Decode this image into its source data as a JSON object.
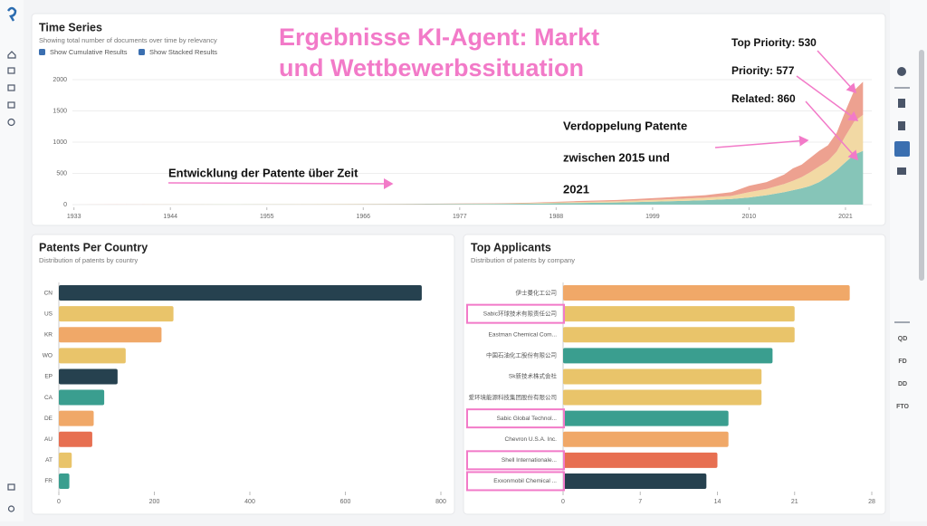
{
  "sidebar_right": [
    "QD",
    "FD",
    "DD",
    "FTO"
  ],
  "annotations": {
    "headline": [
      "Ergebnisse KI-Agent: Markt",
      "und Wettbewerbssituation"
    ],
    "development": "Entwicklung der Patente über Zeit",
    "doubling": [
      "Verdoppelung Patente",
      "zwischen 2015 und",
      "2021"
    ],
    "top_priority": "Top Priority: 530",
    "priority": "Priority: 577",
    "related": "Related: 860"
  },
  "chart_data": [
    {
      "type": "area",
      "title": "Time Series",
      "subtitle": "Showing total number of documents over time by relevancy",
      "options": [
        "Show Cumulative Results",
        "Show Stacked Results"
      ],
      "x": [
        1933,
        1950,
        1970,
        1980,
        1985,
        1990,
        1995,
        2000,
        2005,
        2008,
        2010,
        2012,
        2014,
        2015,
        2016,
        2017,
        2018,
        2019,
        2020,
        2021,
        2022,
        2023
      ],
      "xlim": [
        1932,
        2024
      ],
      "xticks": [
        1933,
        1944,
        1955,
        1966,
        1977,
        1988,
        1999,
        2010,
        2021
      ],
      "ylim": [
        0,
        2000
      ],
      "yticks": [
        0,
        500,
        1000,
        1500,
        2000
      ],
      "grid": true,
      "stacked": true,
      "series": [
        {
          "color": "#86c5b8",
          "values": [
            0,
            2,
            5,
            10,
            15,
            25,
            35,
            50,
            70,
            90,
            115,
            150,
            200,
            230,
            260,
            300,
            360,
            450,
            550,
            680,
            800,
            860
          ]
        },
        {
          "color": "#f2d9a4",
          "values": [
            0,
            1,
            3,
            5,
            8,
            15,
            20,
            30,
            40,
            50,
            85,
            100,
            130,
            150,
            180,
            220,
            250,
            250,
            300,
            420,
            530,
            577
          ]
        },
        {
          "color": "#eda190",
          "values": [
            0,
            1,
            3,
            5,
            8,
            15,
            20,
            30,
            40,
            60,
            100,
            110,
            150,
            200,
            200,
            230,
            250,
            250,
            300,
            400,
            500,
            530
          ]
        }
      ]
    },
    {
      "type": "barh",
      "title": "Patents Per Country",
      "subtitle": "Distribution of patents by country",
      "categories": [
        "CN",
        "US",
        "KR",
        "WO",
        "EP",
        "CA",
        "DE",
        "AU",
        "AT",
        "FR"
      ],
      "values": [
        760,
        240,
        215,
        140,
        123,
        95,
        73,
        70,
        27,
        22
      ],
      "colors": [
        "#26414f",
        "#e9c46a",
        "#f0a868",
        "#e9c46a",
        "#26414f",
        "#3a9e8f",
        "#f0a868",
        "#e76f51",
        "#e9c46a",
        "#3a9e8f"
      ],
      "xlim": [
        0,
        800
      ],
      "xticks": [
        0,
        200,
        400,
        600,
        800
      ]
    },
    {
      "type": "barh",
      "title": "Top Applicants",
      "subtitle": "Distribution of patents by company",
      "categories": [
        "伊士曼化工公司",
        "Sabic环球技术有限责任公司",
        "Eastman Chemical Com...",
        "中国石油化工股份有限公司",
        "Sk新技术株式会社",
        "爱环境能源科技集团股份有限公司",
        "Sabic Global Technol...",
        "Chevron U.S.A. Inc.",
        "Shell Internationale...",
        "Exxonmobil Chemical ..."
      ],
      "values": [
        26,
        21,
        21,
        19,
        18,
        18,
        15,
        15,
        14,
        13
      ],
      "colors": [
        "#f0a868",
        "#e9c46a",
        "#e9c46a",
        "#3a9e8f",
        "#e9c46a",
        "#e9c46a",
        "#3a9e8f",
        "#f0a868",
        "#e76f51",
        "#26414f"
      ],
      "xlim": [
        0,
        28
      ],
      "xticks": [
        0,
        7,
        14,
        21,
        28
      ]
    }
  ]
}
